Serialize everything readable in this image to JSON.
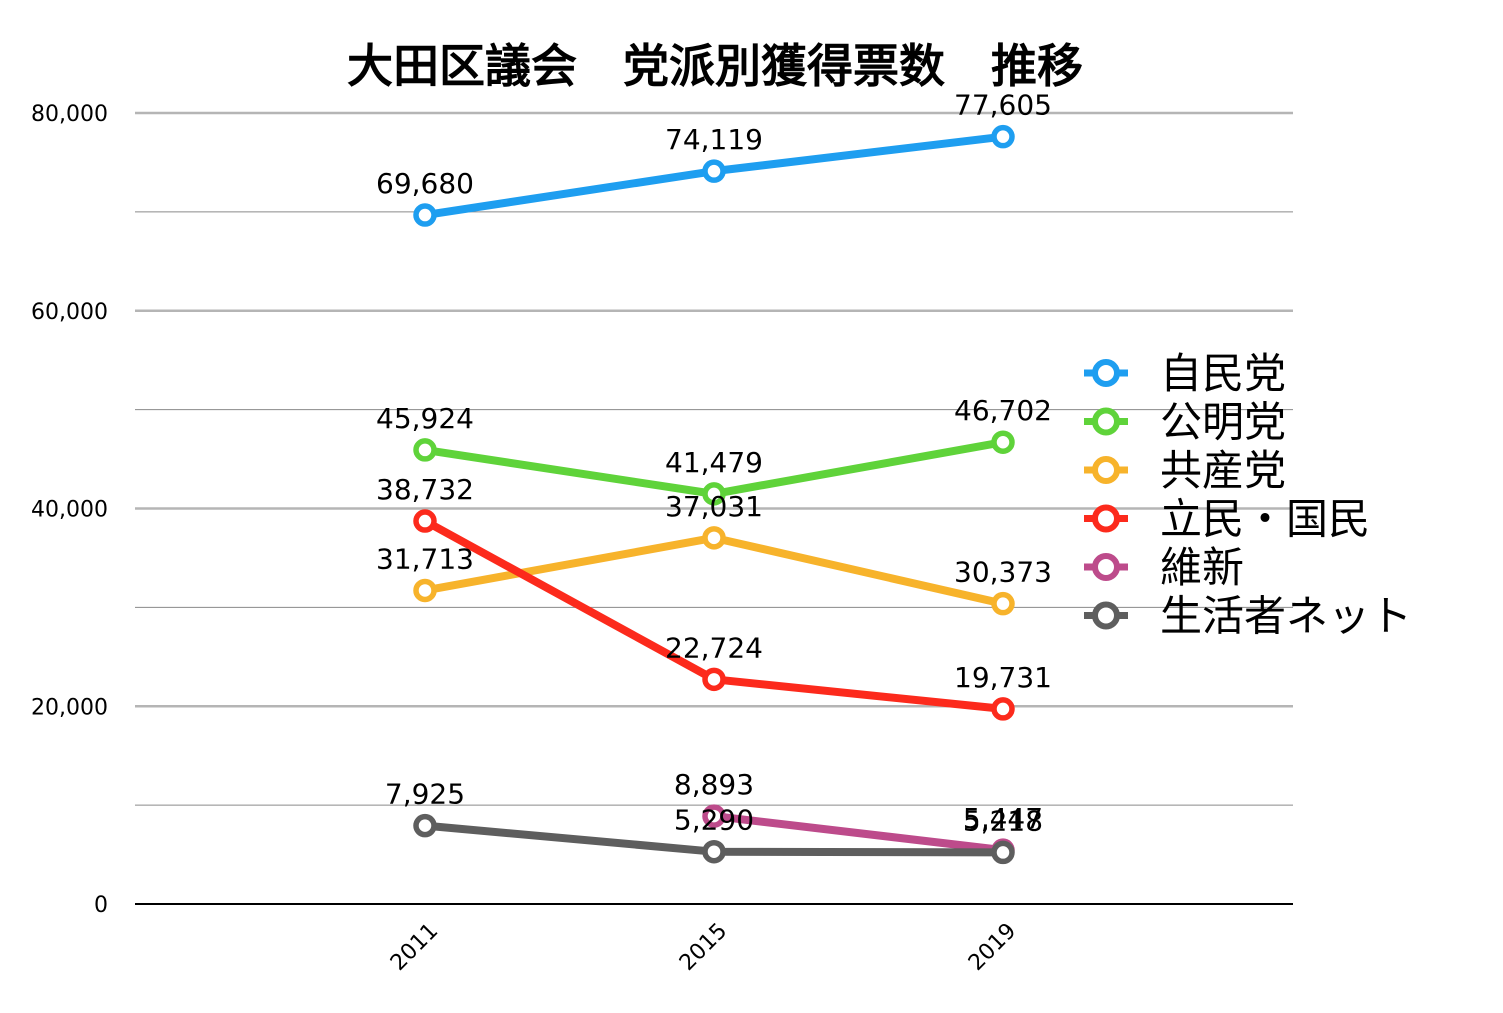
{
  "chart_data": {
    "type": "line",
    "title": "大田区議会　党派別獲得票数　推移",
    "xlabel": "",
    "ylabel": "",
    "categories": [
      "2011",
      "2015",
      "2019"
    ],
    "ylim": [
      0,
      80000
    ],
    "yticks": [
      0,
      20000,
      40000,
      60000,
      80000
    ],
    "ytick_labels": [
      "0",
      "20,000",
      "40,000",
      "60,000",
      "80,000"
    ],
    "grid": true,
    "legend_position": "right",
    "series": [
      {
        "name": "自民党",
        "color": "#1e9ef0",
        "values": [
          69680,
          74119,
          77605
        ],
        "labels": [
          "69,680",
          "74,119",
          "77,605"
        ]
      },
      {
        "name": "公明党",
        "color": "#5fd33a",
        "values": [
          45924,
          41479,
          46702
        ],
        "labels": [
          "45,924",
          "41,479",
          "46,702"
        ]
      },
      {
        "name": "共産党",
        "color": "#f7b32b",
        "values": [
          31713,
          37031,
          30373
        ],
        "labels": [
          "31,713",
          "37,031",
          "30,373"
        ]
      },
      {
        "name": "立民・国民",
        "color": "#fc2a1c",
        "values": [
          38732,
          22724,
          19731
        ],
        "labels": [
          "38,732",
          "22,724",
          "19,731"
        ]
      },
      {
        "name": "維新",
        "color": "#bd4b8b",
        "values": [
          null,
          8893,
          5447
        ],
        "labels": [
          null,
          "8,893",
          "5,447"
        ]
      },
      {
        "name": "生活者ネット",
        "color": "#5e5e5e",
        "values": [
          7925,
          5290,
          5218
        ],
        "labels": [
          "7,925",
          "5,290",
          "5,218"
        ]
      }
    ]
  }
}
